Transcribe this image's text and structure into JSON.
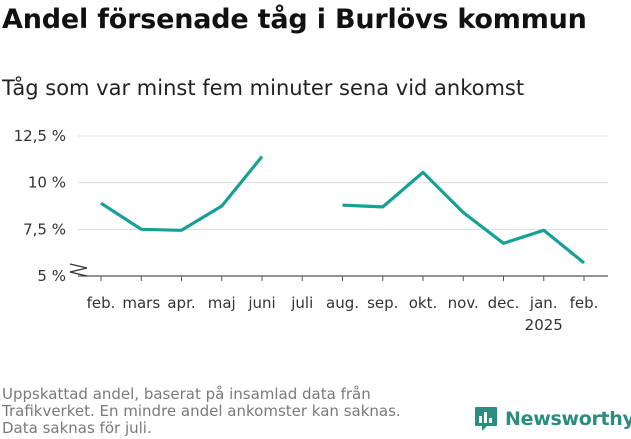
{
  "header": {
    "title": "Andel försenade tåg i Burlövs kommun",
    "subtitle": "Tåg som var minst fem minuter sena vid ankomst"
  },
  "chart_data": {
    "type": "line",
    "title": "Andel försenade tåg i Burlövs kommun",
    "subtitle": "Tåg som var minst fem minuter sena vid ankomst",
    "xlabel": "",
    "ylabel": "",
    "categories": [
      "feb.",
      "mars",
      "apr.",
      "maj",
      "juni",
      "juli",
      "aug.",
      "sep.",
      "okt.",
      "nov.",
      "dec.",
      "jan.",
      "feb."
    ],
    "year_label": "2025",
    "year_label_under": "jan.",
    "series": [
      {
        "values": [
          8.9,
          7.5,
          7.45,
          8.75,
          11.4,
          null,
          8.8,
          8.7,
          10.55,
          8.4,
          6.75,
          7.45,
          5.7
        ]
      }
    ],
    "ylim": [
      5,
      12.5
    ],
    "yticks": [
      5,
      7.5,
      10,
      12.5
    ],
    "ytick_labels": [
      "5 %",
      "7,5 %",
      "10 %",
      "12,5 %"
    ],
    "axis_break": true,
    "grid": true,
    "line_color": "#17a095",
    "grid_color": "#dcdcdc"
  },
  "footer": {
    "note_lines": [
      "Uppskattad andel, baserat på insamlad data från",
      "Trafikverket. En mindre andel ankomster kan saknas.",
      "Data saknas för juli."
    ],
    "brand": "Newsworthy",
    "brand_icon": "newsworthy-logo-icon",
    "brand_color": "#2b8c80"
  }
}
